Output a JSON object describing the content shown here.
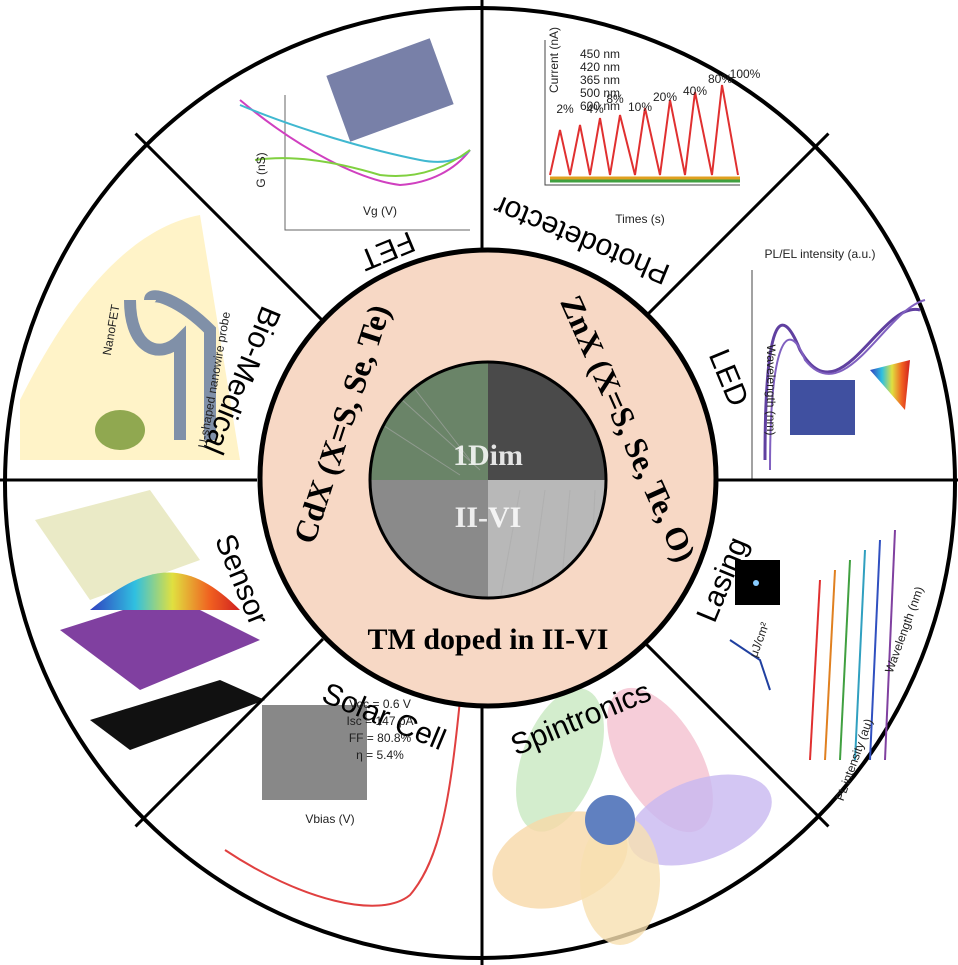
{
  "center": {
    "title_left": "CdX (X=S, Se, Te)",
    "title_right": "ZnX (X=S, Se, Te, O)",
    "title_bottom": "TM doped in II-VI",
    "image_top": "1Dim",
    "image_bottom": "II-VI"
  },
  "sectors": [
    {
      "label": "FET",
      "texts": [
        "G (nS)",
        "Vg (V)"
      ]
    },
    {
      "label": "Photodetector",
      "texts": [
        "Current (nA)",
        "Times (s)",
        "450 nm",
        "420 nm",
        "365 nm",
        "500 nm",
        "600 nm",
        "2%",
        "4%",
        "8%",
        "10%",
        "20%",
        "40%",
        "80%",
        "100%"
      ]
    },
    {
      "label": "LED",
      "texts": [
        "PL/EL intensity (a.u.)",
        "Wavelength (nm)"
      ]
    },
    {
      "label": "Lasing",
      "texts": [
        "Wavelength (nm)",
        "PL intensity (au)",
        "μJ/cm²"
      ]
    },
    {
      "label": "Spintronics",
      "texts": []
    },
    {
      "label": "Solar Cell",
      "texts": [
        "Voc = 0.6 V",
        "Isc = 147 pA",
        "FF = 80.8%",
        "η = 5.4%",
        "Vbias (V)"
      ]
    },
    {
      "label": "Sensor",
      "texts": []
    },
    {
      "label": "Bio-Medical",
      "texts": [
        "NanoFET",
        "U-shaped nanowire probe"
      ]
    }
  ]
}
